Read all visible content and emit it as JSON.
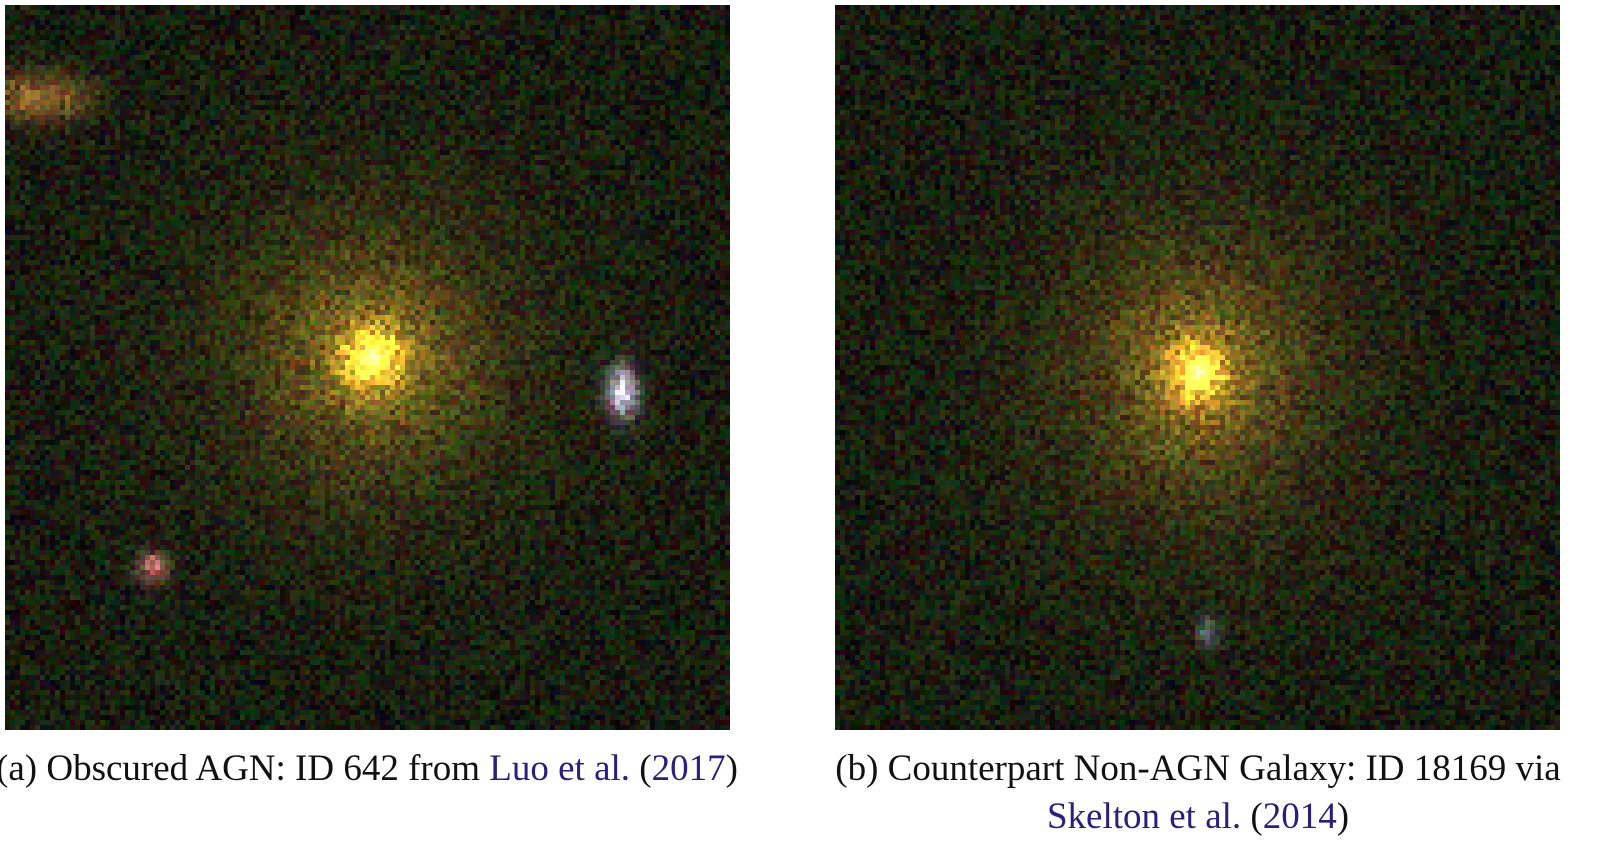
{
  "figures": [
    {
      "label": "(a)",
      "caption_text": "Obscured AGN: ID 642 from",
      "link_author": "Luo et al.",
      "link_year": "2017",
      "open_paren": "(",
      "close_paren": ")"
    },
    {
      "label": "(b)",
      "caption_text": "Counterpart Non-AGN Galaxy: ID 18169 via",
      "link_author": "Skelton et al.",
      "link_year": "2014",
      "open_paren": "(",
      "close_paren": ")"
    }
  ],
  "colors": {
    "link": "#2a1f7a",
    "galaxy_core": "#f5c542"
  }
}
